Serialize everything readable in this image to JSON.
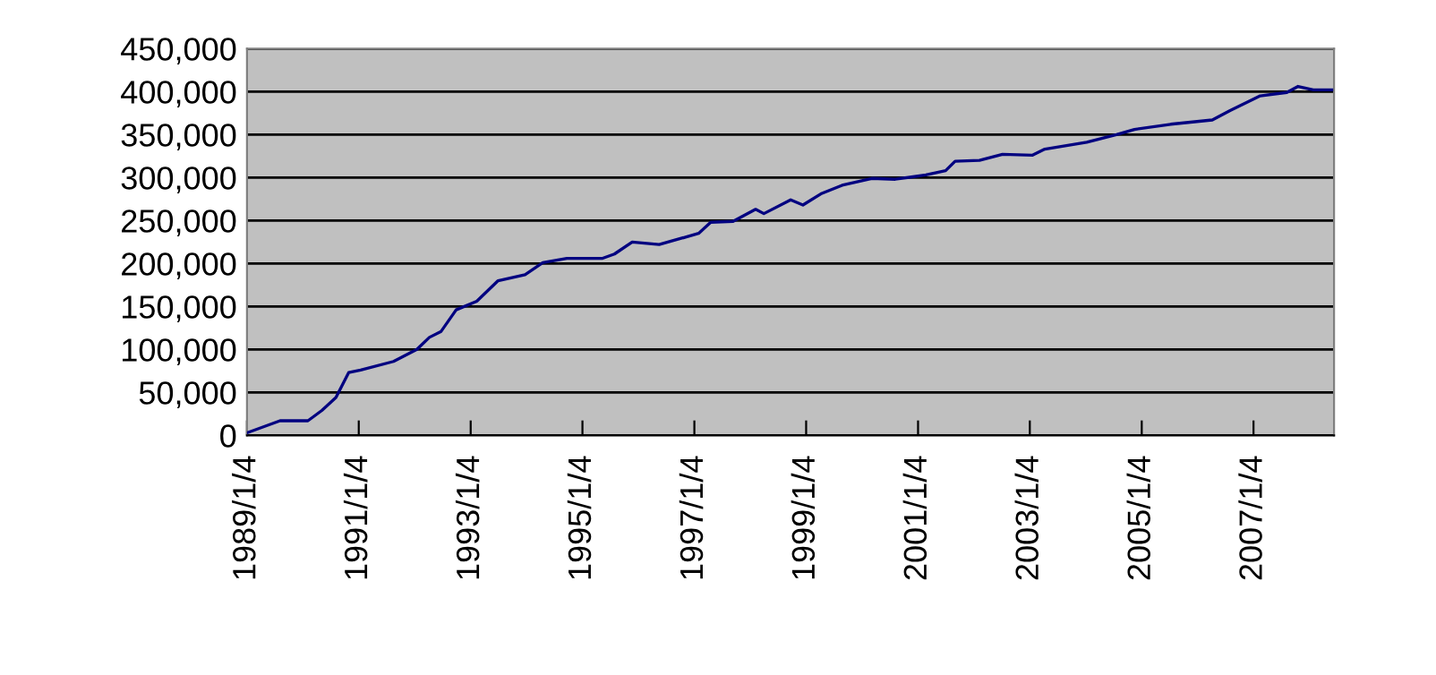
{
  "chart_data": {
    "type": "line",
    "color": "#000080",
    "grid": "y",
    "legend": false,
    "marker": "none",
    "line_style": "solid",
    "x": [
      "1989-01-04",
      "1989-08-08",
      "1990-02-06",
      "1990-05-08",
      "1990-08-08",
      "1990-10-30",
      "1991-01-16",
      "1991-08-19",
      "1992-01-19",
      "1992-04-09",
      "1992-06-25",
      "1992-10-01",
      "1993-02-13",
      "1993-07-02",
      "1993-12-25",
      "1994-04-20",
      "1994-09-24",
      "1995-05-16",
      "1995-08-01",
      "1995-11-25",
      "1996-05-19",
      "1997-02-01",
      "1997-04-21",
      "1997-09-14",
      "1998-02-08",
      "1998-04-03",
      "1998-09-25",
      "1998-12-14",
      "1999-04-10",
      "1999-08-27",
      "2000-03-08",
      "2000-08-08",
      "2001-02-24",
      "2001-07-03",
      "2001-09-03",
      "2002-02-09",
      "2002-07-10",
      "2003-01-22",
      "2003-04-12",
      "2004-01-11",
      "2004-07-23",
      "2004-11-17",
      "2005-07-12",
      "2006-04-10",
      "2006-08-04",
      "2007-02-17",
      "2007-08-10",
      "2007-10-22",
      "2008-01-29",
      "2008-05-29"
    ],
    "values": [
      3000,
      17000,
      17000,
      29000,
      44000,
      73000,
      76000,
      86000,
      100000,
      114000,
      121000,
      146000,
      156000,
      180000,
      187000,
      201000,
      206000,
      206000,
      211000,
      225000,
      222000,
      235000,
      248000,
      249000,
      263000,
      258000,
      274000,
      268000,
      281000,
      291000,
      299000,
      298000,
      303000,
      308000,
      319000,
      320000,
      327000,
      326000,
      333000,
      341000,
      350000,
      356000,
      362000,
      367000,
      378000,
      395000,
      399000,
      406000,
      402000,
      402000
    ],
    "xlim": [
      "1989-01-04",
      "2008-06-13"
    ],
    "xticks": [
      {
        "value": "1989-01-04",
        "label": "1989/1/4"
      },
      {
        "value": "1991-01-04",
        "label": "1991/1/4"
      },
      {
        "value": "1993-01-04",
        "label": "1993/1/4"
      },
      {
        "value": "1995-01-04",
        "label": "1995/1/4"
      },
      {
        "value": "1997-01-04",
        "label": "1997/1/4"
      },
      {
        "value": "1999-01-04",
        "label": "1999/1/4"
      },
      {
        "value": "2001-01-04",
        "label": "2001/1/4"
      },
      {
        "value": "2003-01-04",
        "label": "2003/1/4"
      },
      {
        "value": "2005-01-04",
        "label": "2005/1/4"
      },
      {
        "value": "2007-01-04",
        "label": "2007/1/4"
      }
    ],
    "ylim": [
      0,
      450000
    ],
    "yticks": [
      0,
      {
        "value": 50000,
        "label": "50,000"
      },
      {
        "value": 100000,
        "label": "100,000"
      },
      {
        "value": 150000,
        "label": "150,000"
      },
      {
        "value": 200000,
        "label": "200,000"
      },
      {
        "value": 250000,
        "label": "250,000"
      },
      {
        "value": 300000,
        "label": "300,000"
      },
      {
        "value": 350000,
        "label": "350,000"
      },
      {
        "value": 400000,
        "label": "400,000"
      },
      {
        "value": 450000,
        "label": "450,000"
      }
    ]
  }
}
